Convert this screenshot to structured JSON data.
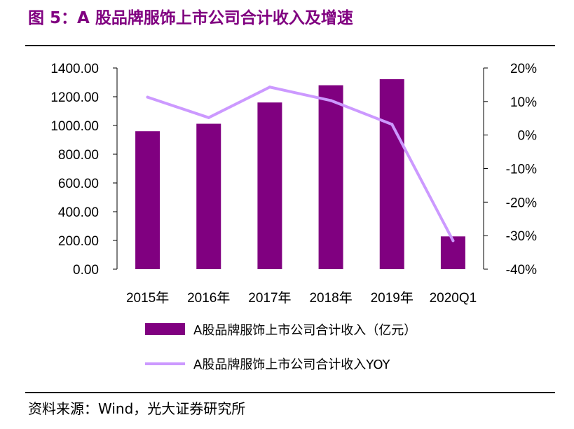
{
  "figure": {
    "title": "图 5：A 股品牌服饰上市公司合计收入及增速",
    "source": "资料来源：Wind，光大证券研究所"
  },
  "colors": {
    "bar": "#800080",
    "line": "#cc99ff",
    "title": "#800080"
  },
  "chart_data": {
    "type": "bar",
    "categories": [
      "2015年",
      "2016年",
      "2017年",
      "2018年",
      "2019年",
      "2020Q1"
    ],
    "series": [
      {
        "name": "A股品牌服饰上市公司合计收入（亿元）",
        "type": "bar",
        "axis": "left",
        "values": [
          960,
          1012,
          1160,
          1280,
          1322,
          228
        ]
      },
      {
        "name": "A股品牌服饰上市公司合计收入YOY",
        "type": "line",
        "axis": "right",
        "values": [
          11.3,
          5.2,
          14.3,
          10.3,
          3.2,
          -31.5
        ]
      }
    ],
    "y_left": {
      "min": 0,
      "max": 1400,
      "step": 200,
      "tick_labels": [
        "0.00",
        "200.00",
        "400.00",
        "600.00",
        "800.00",
        "1000.00",
        "1200.00",
        "1400.00"
      ]
    },
    "y_right": {
      "min": -40,
      "max": 20,
      "step": 10,
      "tick_labels": [
        "-40%",
        "-30%",
        "-20%",
        "-10%",
        "0%",
        "10%",
        "20%"
      ]
    },
    "grid": false,
    "legend_position": "bottom"
  }
}
